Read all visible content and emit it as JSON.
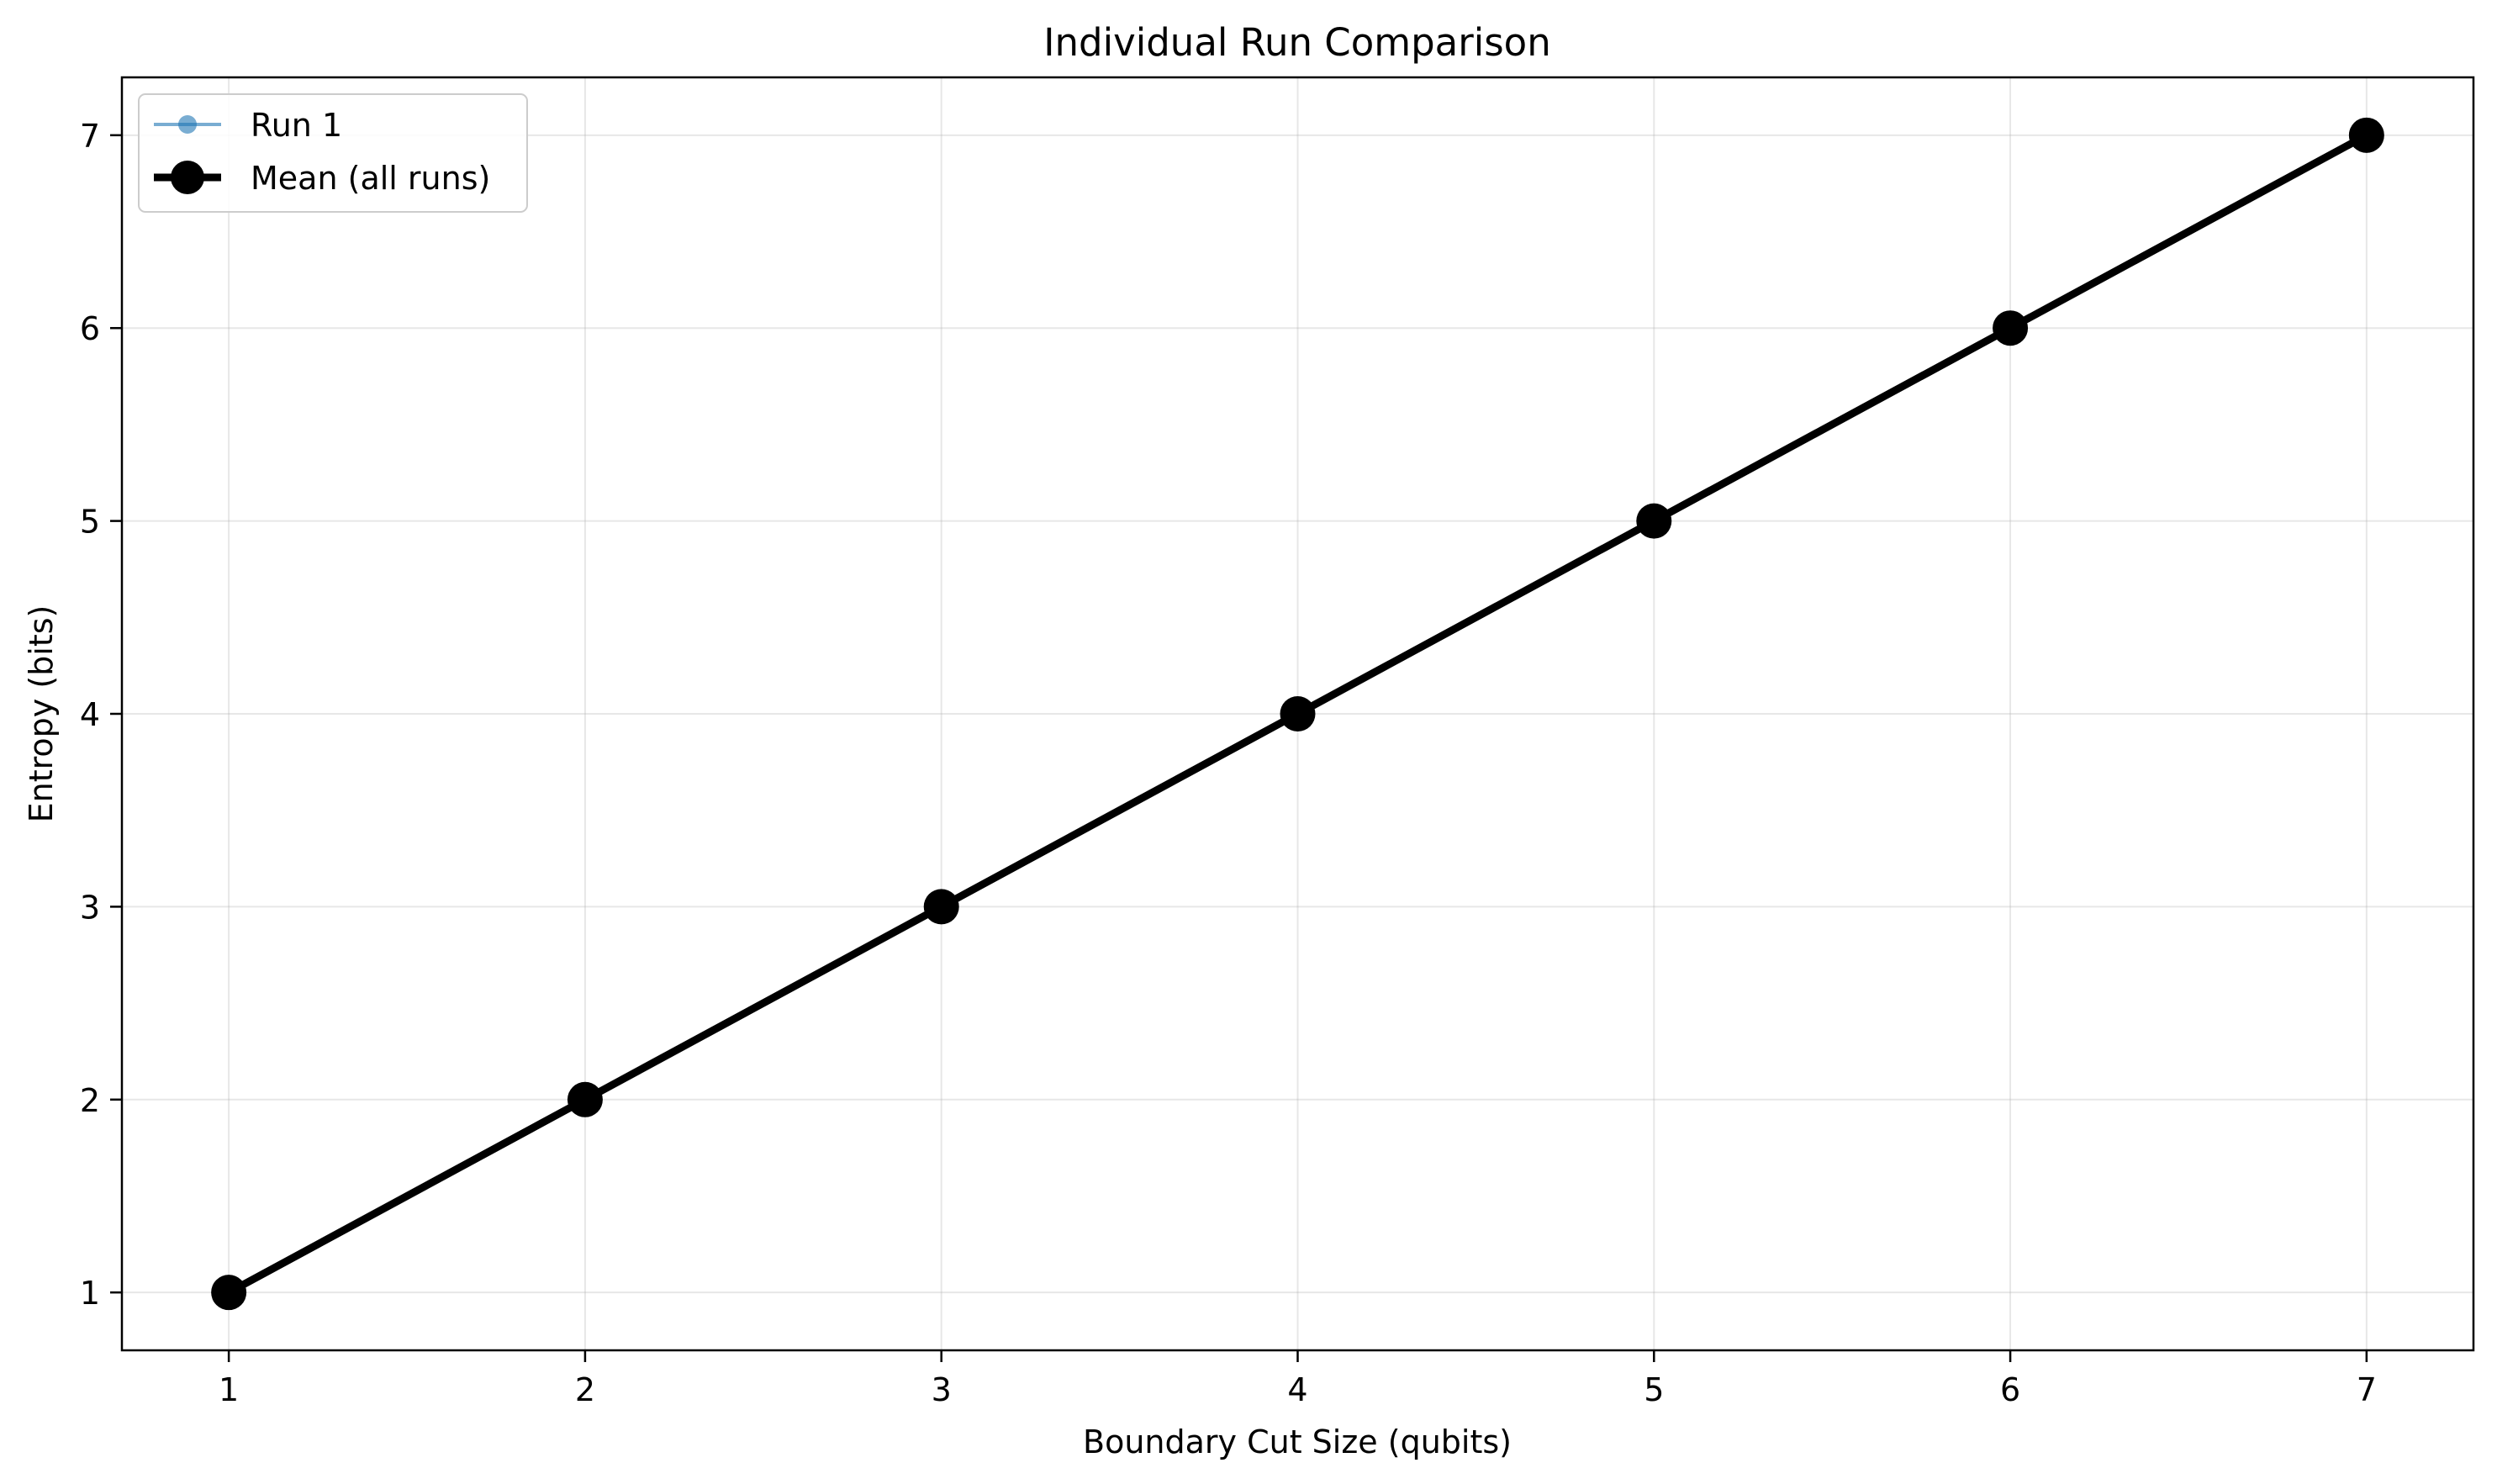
{
  "chart_data": {
    "type": "line",
    "title": "Individual Run Comparison",
    "xlabel": "Boundary Cut Size (qubits)",
    "ylabel": "Entropy (bits)",
    "x": [
      1,
      2,
      3,
      4,
      5,
      6,
      7
    ],
    "xlim": [
      0.7,
      7.3
    ],
    "ylim": [
      0.7,
      7.3
    ],
    "xticks": [
      1,
      2,
      3,
      4,
      5,
      6,
      7
    ],
    "yticks": [
      1,
      2,
      3,
      4,
      5,
      6,
      7
    ],
    "grid": true,
    "legend_position": "top-left",
    "series": [
      {
        "name": "Run 1",
        "values": [
          1,
          2,
          3,
          4,
          5,
          6,
          7
        ],
        "color": "#1f77b4",
        "style": "line-with-circle-markers-semi-transparent"
      },
      {
        "name": "Mean (all runs)",
        "values": [
          1,
          2,
          3,
          4,
          5,
          6,
          7
        ],
        "color": "#000000",
        "style": "thick-line-with-large-circle-markers"
      }
    ]
  }
}
